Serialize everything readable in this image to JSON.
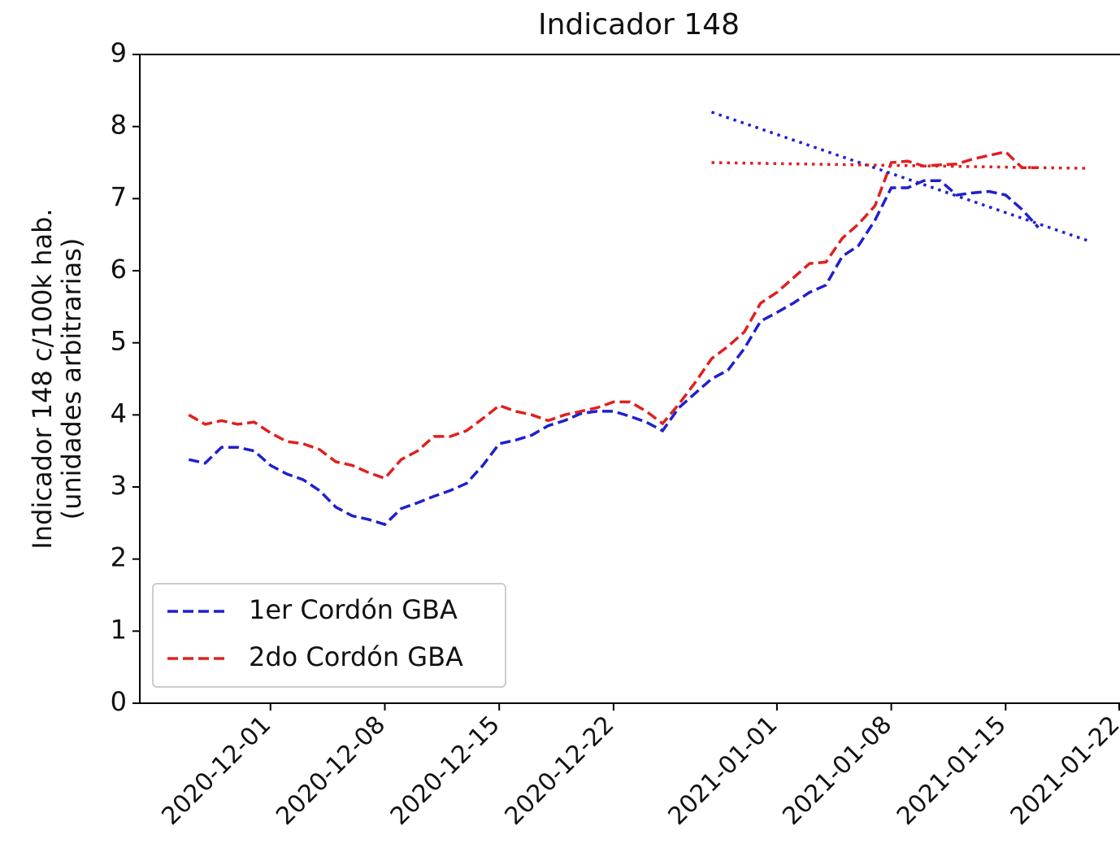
{
  "chart_data": {
    "type": "line",
    "title": "Indicador 148",
    "ylabel": [
      "Indicador 148 c/100k hab.",
      "(unidades arbitrarias)"
    ],
    "x": [
      "2020-11-26",
      "2020-11-27",
      "2020-11-28",
      "2020-11-29",
      "2020-11-30",
      "2020-12-01",
      "2020-12-02",
      "2020-12-03",
      "2020-12-04",
      "2020-12-05",
      "2020-12-06",
      "2020-12-07",
      "2020-12-08",
      "2020-12-09",
      "2020-12-10",
      "2020-12-11",
      "2020-12-12",
      "2020-12-13",
      "2020-12-14",
      "2020-12-15",
      "2020-12-16",
      "2020-12-17",
      "2020-12-18",
      "2020-12-19",
      "2020-12-20",
      "2020-12-21",
      "2020-12-22",
      "2020-12-23",
      "2020-12-24",
      "2020-12-25",
      "2020-12-26",
      "2020-12-27",
      "2020-12-28",
      "2020-12-29",
      "2020-12-30",
      "2020-12-31",
      "2021-01-01",
      "2021-01-02",
      "2021-01-03",
      "2021-01-04",
      "2021-01-05",
      "2021-01-06",
      "2021-01-07",
      "2021-01-08",
      "2021-01-09",
      "2021-01-10",
      "2021-01-11",
      "2021-01-12",
      "2021-01-13",
      "2021-01-14",
      "2021-01-15",
      "2021-01-16",
      "2021-01-17"
    ],
    "series": [
      {
        "name": "1er Cordón GBA",
        "color": "#1f1fd0",
        "style": "dashed",
        "values": [
          3.38,
          3.33,
          3.55,
          3.55,
          3.5,
          3.3,
          3.18,
          3.1,
          2.95,
          2.72,
          2.6,
          2.55,
          2.48,
          2.7,
          2.78,
          2.87,
          2.95,
          3.05,
          3.3,
          3.6,
          3.65,
          3.72,
          3.85,
          3.92,
          4.02,
          4.05,
          4.05,
          3.98,
          3.9,
          3.78,
          4.1,
          4.3,
          4.5,
          4.62,
          4.92,
          5.3,
          5.42,
          5.55,
          5.7,
          5.8,
          6.2,
          6.35,
          6.7,
          7.15,
          7.15,
          7.25,
          7.25,
          7.05,
          7.08,
          7.1,
          7.05,
          6.85,
          6.6
        ]
      },
      {
        "name": "2do Cordón GBA",
        "color": "#e0201f",
        "style": "dashed",
        "values": [
          4.0,
          3.87,
          3.92,
          3.87,
          3.9,
          3.75,
          3.63,
          3.6,
          3.52,
          3.35,
          3.3,
          3.2,
          3.12,
          3.38,
          3.5,
          3.7,
          3.7,
          3.78,
          3.95,
          4.13,
          4.05,
          4.0,
          3.92,
          4.0,
          4.05,
          4.1,
          4.18,
          4.18,
          4.05,
          3.88,
          4.15,
          4.45,
          4.78,
          4.95,
          5.15,
          5.55,
          5.7,
          5.9,
          6.1,
          6.12,
          6.45,
          6.65,
          6.9,
          7.5,
          7.52,
          7.45,
          7.47,
          7.48,
          7.55,
          7.6,
          7.65,
          7.43,
          7.43
        ]
      },
      {
        "color": "#1f1fd0",
        "style": "dotted",
        "x": [
          "2020-12-28",
          "2021-01-20"
        ],
        "values": [
          8.2,
          6.42
        ]
      },
      {
        "color": "#e0201f",
        "style": "dotted",
        "x": [
          "2020-12-28",
          "2021-01-20"
        ],
        "values": [
          7.5,
          7.42
        ]
      }
    ],
    "xlim": [
      "2020-11-23",
      "2021-01-22"
    ],
    "xticks": [
      "2020-12-01",
      "2020-12-08",
      "2020-12-15",
      "2020-12-22",
      "2021-01-01",
      "2021-01-08",
      "2021-01-15",
      "2021-01-22"
    ],
    "ylim": [
      0,
      9
    ],
    "yticks": [
      0,
      1,
      2,
      3,
      4,
      5,
      6,
      7,
      8,
      9
    ],
    "legend": "lower left"
  }
}
